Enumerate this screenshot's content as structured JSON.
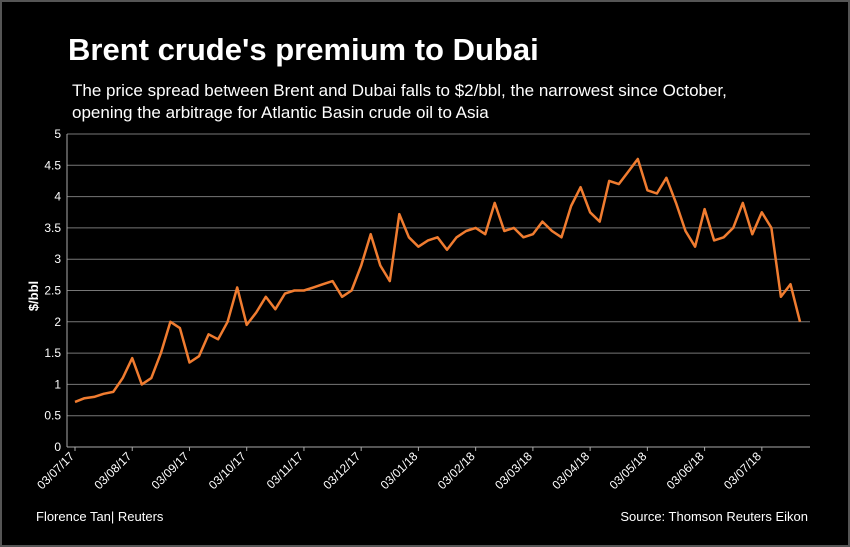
{
  "chart_data": {
    "type": "line",
    "title": "Brent crude's premium to Dubai",
    "subtitle": [
      "The price spread between Brent and Dubai falls to $2/bbl, the narrowest since October,",
      "opening the arbitrage for Atlantic Basin crude oil to Asia"
    ],
    "y_label": "$/bbl",
    "footer_left": "Florence  Tan| Reuters",
    "footer_right": "Source: Thomson Reuters Eikon",
    "color": "#f07c30",
    "grid": true,
    "ylim": [
      0,
      5
    ],
    "yticks": [
      0,
      0.5,
      1,
      1.5,
      2,
      2.5,
      3,
      3.5,
      4,
      4.5,
      5
    ],
    "categories": [
      "03/07/17",
      null,
      null,
      null,
      null,
      null,
      "03/08/17",
      null,
      null,
      null,
      null,
      null,
      "03/09/17",
      null,
      null,
      null,
      null,
      null,
      "03/10/17",
      null,
      null,
      null,
      null,
      null,
      "03/11/17",
      null,
      null,
      null,
      null,
      null,
      "03/12/17",
      null,
      null,
      null,
      null,
      null,
      "03/01/18",
      null,
      null,
      null,
      null,
      null,
      "03/02/18",
      null,
      null,
      null,
      null,
      null,
      "03/03/18",
      null,
      null,
      null,
      null,
      null,
      "03/04/18",
      null,
      null,
      null,
      null,
      null,
      "03/05/18",
      null,
      null,
      null,
      null,
      null,
      "03/06/18",
      null,
      null,
      null,
      null,
      null,
      "03/07/18",
      null,
      null,
      null,
      null
    ],
    "values": [
      0.72,
      0.78,
      0.8,
      0.85,
      0.88,
      1.1,
      1.42,
      1.0,
      1.1,
      1.5,
      2.0,
      1.9,
      1.35,
      1.45,
      1.8,
      1.72,
      2.0,
      2.55,
      1.95,
      2.15,
      2.4,
      2.2,
      2.45,
      2.5,
      2.5,
      2.55,
      2.6,
      2.65,
      2.4,
      2.5,
      2.9,
      3.4,
      2.9,
      2.65,
      3.72,
      3.35,
      3.2,
      3.3,
      3.35,
      3.15,
      3.35,
      3.45,
      3.5,
      3.4,
      3.9,
      3.45,
      3.5,
      3.35,
      3.4,
      3.6,
      3.45,
      3.35,
      3.85,
      4.15,
      3.75,
      3.6,
      4.25,
      4.2,
      4.4,
      4.6,
      4.1,
      4.05,
      4.3,
      3.9,
      3.45,
      3.2,
      3.8,
      3.3,
      3.35,
      3.5,
      3.9,
      3.4,
      3.75,
      3.5,
      2.4,
      2.6,
      2.0
    ]
  }
}
